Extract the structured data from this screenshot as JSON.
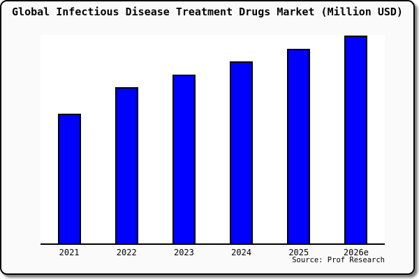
{
  "window": {
    "title": "Global Infectious Disease Treatment Drugs Market (Million USD)",
    "source_note": "Source: Prof Research"
  },
  "colors": {
    "bar_fill": "#0000ff",
    "bar_border": "#000000",
    "card_background": "#fafafa",
    "plot_background": "#ffffff",
    "card_border": "#000000",
    "text": "#000000"
  },
  "chart_data": {
    "type": "bar",
    "title": "Global Infectious Disease Treatment Drugs Market (Million USD)",
    "categories": [
      "2021",
      "2022",
      "2023",
      "2024",
      "2025",
      "2026e"
    ],
    "values": [
      100,
      120,
      130,
      140,
      150,
      160
    ],
    "value_basis": "relative units estimated from bar heights; y-axis is unlabeled in the image",
    "xlabel": "",
    "ylabel": "",
    "ylim": [
      0,
      160.5
    ],
    "grid": false,
    "legend": false,
    "y_axis_visible": false,
    "annotations": [
      "Source: Prof Research"
    ]
  }
}
